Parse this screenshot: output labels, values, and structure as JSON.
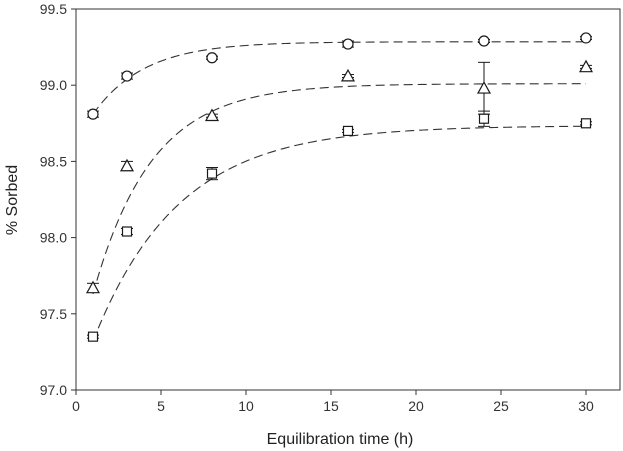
{
  "chart_data": {
    "type": "scatter",
    "title": "",
    "xlabel": "Equilibration time (h)",
    "ylabel": "% Sorbed",
    "xlim": [
      0,
      32
    ],
    "ylim": [
      97.0,
      99.5
    ],
    "x_ticks": [
      0,
      5,
      10,
      15,
      20,
      25,
      30
    ],
    "y_ticks": [
      97.0,
      97.5,
      98.0,
      98.5,
      99.0,
      99.5
    ],
    "x_tick_labels": [
      "0",
      "5",
      "10",
      "15",
      "20",
      "25",
      "30"
    ],
    "y_tick_labels": [
      "97.0",
      "97.5",
      "98.0",
      "98.5",
      "99.0",
      "99.5"
    ],
    "grid": false,
    "legend": "none",
    "colors": {
      "marks": "#1a1a1a",
      "fit_line": "#333333",
      "axes": "#333333"
    },
    "series": [
      {
        "marker": "circle",
        "x": [
          1,
          3,
          8,
          16,
          24,
          30
        ],
        "y": [
          98.81,
          99.06,
          99.18,
          99.27,
          99.29,
          99.31
        ],
        "error": [
          0.02,
          0.02,
          0.01,
          0.02,
          0.01,
          0.01
        ],
        "fit": {
          "model": "first-order",
          "x_start": 1,
          "x_end": 30,
          "y_inf": 99.285,
          "y_at_start": 98.81,
          "rate": 0.33
        }
      },
      {
        "marker": "triangle",
        "x": [
          1,
          3,
          8,
          16,
          24,
          30
        ],
        "y": [
          97.67,
          98.47,
          98.8,
          99.06,
          98.98,
          99.12
        ],
        "error": [
          0.03,
          0.03,
          0.01,
          0.01,
          0.17,
          0.01
        ],
        "fit": {
          "model": "first-order",
          "x_start": 1,
          "x_end": 30,
          "y_inf": 99.01,
          "y_at_start": 97.63,
          "rate": 0.29
        }
      },
      {
        "marker": "square",
        "x": [
          1,
          3,
          8,
          16,
          24,
          30
        ],
        "y": [
          97.35,
          98.04,
          98.42,
          98.7,
          98.78,
          98.75
        ],
        "error": [
          0.01,
          0.02,
          0.04,
          0.01,
          0.05,
          0.01
        ],
        "fit": {
          "model": "first-order",
          "x_start": 1,
          "x_end": 30,
          "y_inf": 98.735,
          "y_at_start": 97.32,
          "rate": 0.2
        }
      }
    ]
  }
}
